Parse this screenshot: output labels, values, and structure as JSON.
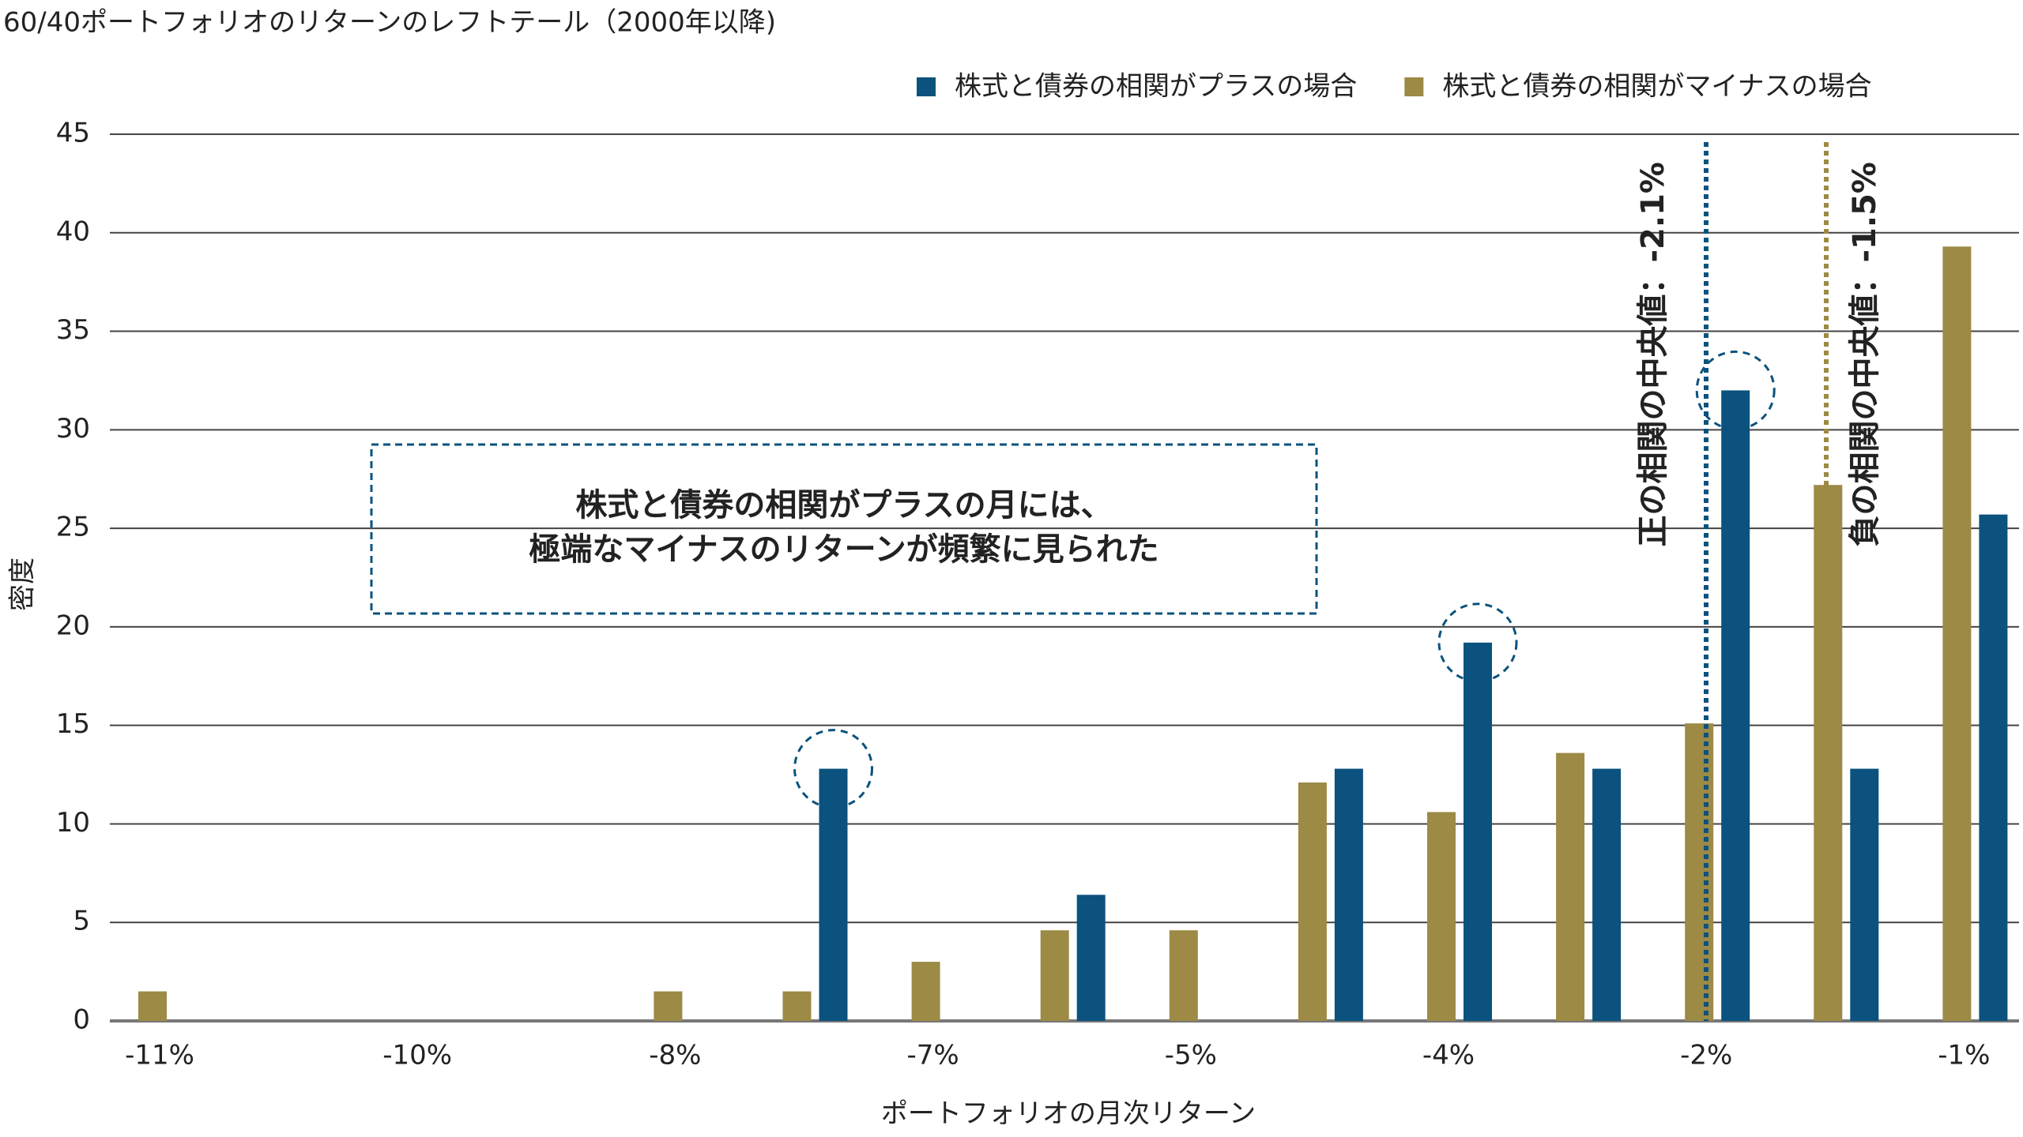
{
  "chart_data": {
    "type": "bar",
    "title": "60/40ポートフォリオのリターンのレフトテール（2000年以降)",
    "x_label": "ポートフォリオの月次リターン",
    "y_label": "密度",
    "categories": [
      "-11%",
      null,
      "-10%",
      null,
      "-8%",
      null,
      "-7%",
      null,
      "-5%",
      null,
      "-4%",
      null,
      "-2%",
      null,
      "-1%"
    ],
    "series": [
      {
        "name": "株式と債券の相関がプラスの場合",
        "color": "#0b527e",
        "values": [
          0,
          0,
          0,
          0,
          0,
          12.8,
          0,
          6.4,
          0,
          12.8,
          19.2,
          12.8,
          32.0,
          12.8,
          25.7
        ]
      },
      {
        "name": "株式と債券の相関がマイナスの場合",
        "color": "#9c8a45",
        "values": [
          1.5,
          0,
          0,
          0,
          1.5,
          1.5,
          3.0,
          4.6,
          4.6,
          12.1,
          10.6,
          13.6,
          15.1,
          27.2,
          39.3
        ]
      }
    ],
    "ylim": [
      0,
      45
    ],
    "yticks": [
      0,
      5,
      10,
      15,
      20,
      25,
      30,
      35,
      40,
      45
    ],
    "grid": true,
    "medians": [
      {
        "label": "正の相関の中央値：-2.1%",
        "value": -2.1,
        "color": "#0b527e"
      },
      {
        "label": "負の相関の中央値：-1.5%",
        "value": -1.5,
        "color": "#9c8a45"
      }
    ],
    "annotation": [
      "株式と債券の相関がプラスの月には、",
      "極端なマイナスのリターンが頻繁に見られた"
    ]
  }
}
